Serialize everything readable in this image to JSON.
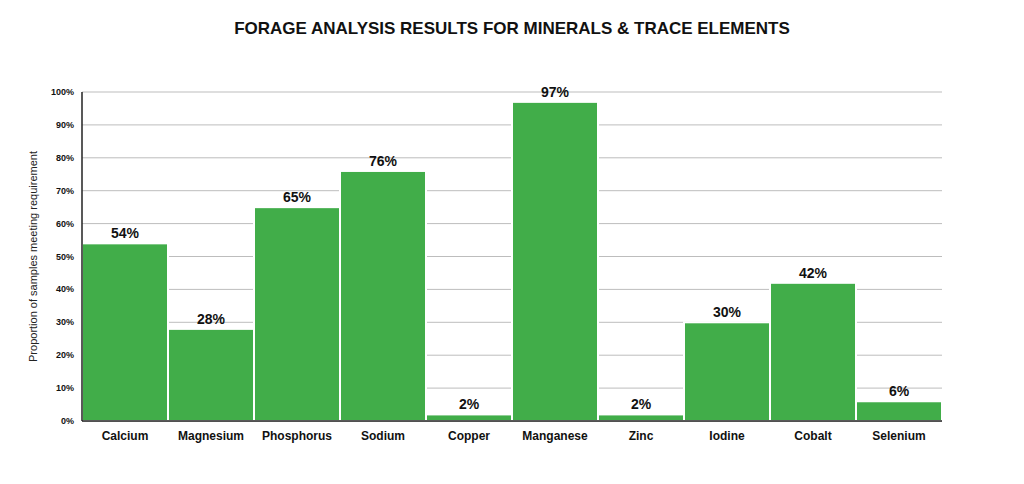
{
  "chart_data": {
    "type": "bar",
    "title": "FORAGE ANALYSIS RESULTS FOR MINERALS & TRACE ELEMENTS",
    "y_label": "Proportion of samples meeting requirement",
    "categories": [
      "Calcium",
      "Magnesium",
      "Phosphorus",
      "Sodium",
      "Copper",
      "Manganese",
      "Zinc",
      "Iodine",
      "Cobalt",
      "Selenium"
    ],
    "values": [
      54,
      28,
      65,
      76,
      2,
      97,
      2,
      30,
      42,
      6
    ],
    "value_labels": [
      "54%",
      "28%",
      "65%",
      "76%",
      "2%",
      "97%",
      "2%",
      "30%",
      "42%",
      "6%"
    ],
    "color": "#41ad49",
    "ylim": [
      0,
      100
    ],
    "yticks": [
      {
        "value": 0,
        "label": "0%"
      },
      {
        "value": 10,
        "label": "10%"
      },
      {
        "value": 20,
        "label": "20%"
      },
      {
        "value": 30,
        "label": "30%"
      },
      {
        "value": 40,
        "label": "40%"
      },
      {
        "value": 50,
        "label": "50%"
      },
      {
        "value": 60,
        "label": "60%"
      },
      {
        "value": 70,
        "label": "70%"
      },
      {
        "value": 80,
        "label": "80%"
      },
      {
        "value": 90,
        "label": "90%"
      },
      {
        "value": 100,
        "label": "100%"
      }
    ],
    "grid": true,
    "data_labels": true
  }
}
